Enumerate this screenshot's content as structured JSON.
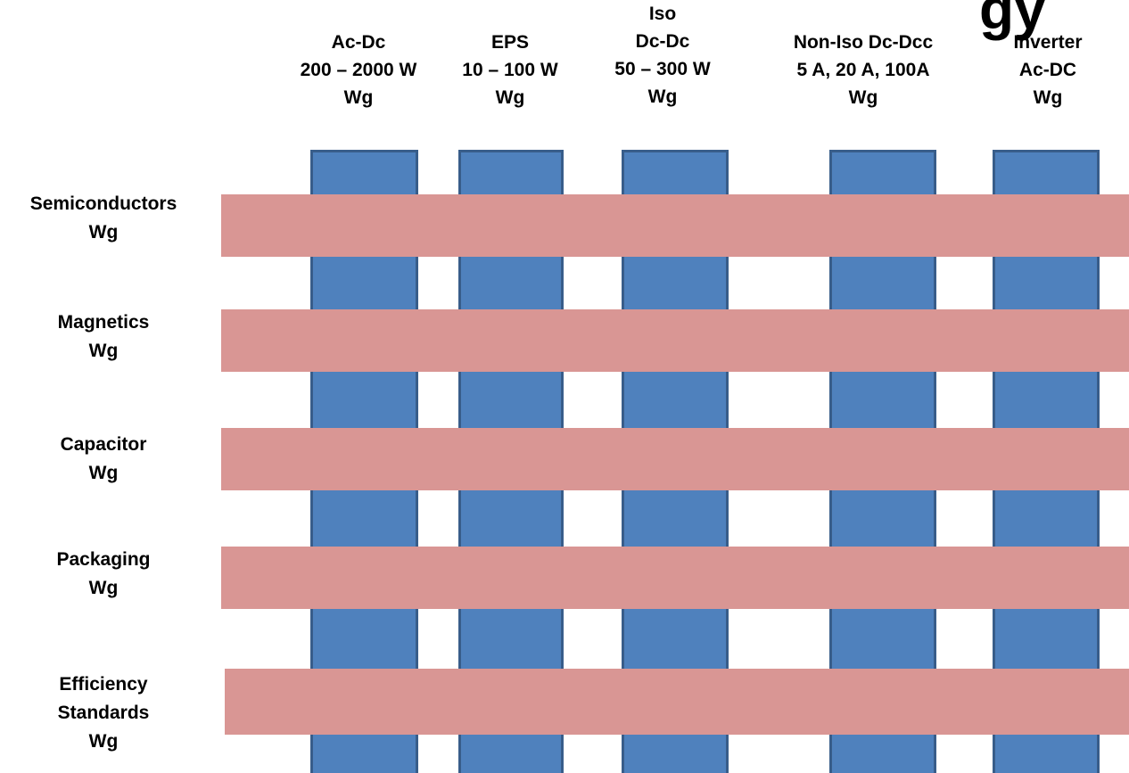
{
  "title_fragment": "gy",
  "columns": [
    {
      "lines": [
        "Ac-Dc",
        "200 – 2000 W",
        "Wg"
      ]
    },
    {
      "lines": [
        "EPS",
        "10 – 100  W",
        "Wg"
      ]
    },
    {
      "lines": [
        "Iso",
        "Dc-Dc",
        "50 – 300  W",
        "Wg"
      ]
    },
    {
      "lines": [
        "Non-Iso Dc-Dcc",
        "5 A, 20 A, 100A",
        "Wg"
      ]
    },
    {
      "lines": [
        "Inverter",
        "Ac-DC",
        "Wg"
      ]
    }
  ],
  "rows": [
    {
      "lines": [
        "Semiconductors",
        "Wg"
      ]
    },
    {
      "lines": [
        "Magnetics",
        "Wg"
      ]
    },
    {
      "lines": [
        "Capacitor",
        "Wg"
      ]
    },
    {
      "lines": [
        "Packaging",
        "Wg"
      ]
    },
    {
      "lines": [
        "Efficiency",
        "Standards",
        "Wg"
      ]
    }
  ],
  "colors": {
    "column_fill": "#4f81bd",
    "column_border": "#385d8a",
    "row_fill": "#d99694"
  }
}
